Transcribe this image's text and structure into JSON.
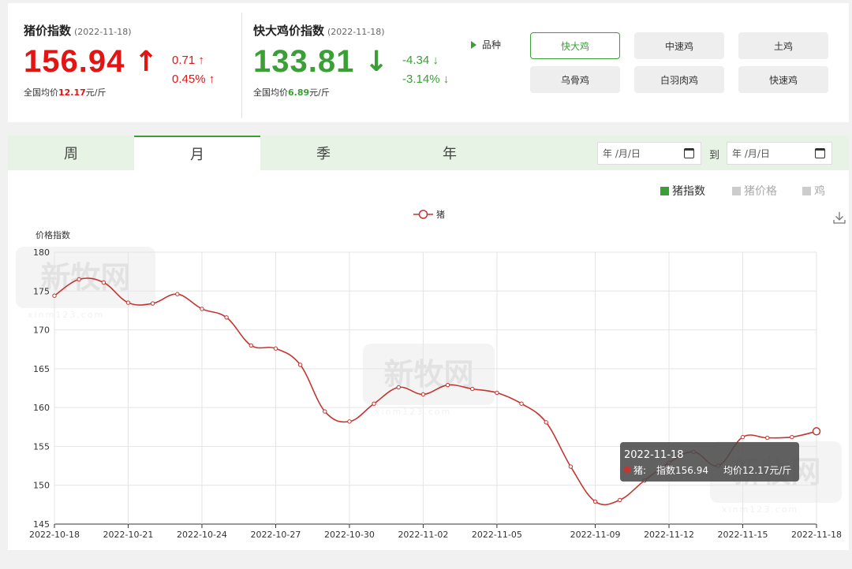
{
  "pig_index": {
    "title": "猪价指数",
    "date": "(2022-11-18)",
    "value": "156.94",
    "arrow": "↑",
    "change_abs": "0.71 ↑",
    "change_pct": "0.45% ↑",
    "avg_prefix": "全国均价",
    "avg_value": "12.17",
    "avg_unit": "元/斤",
    "color": "#e31414"
  },
  "chicken_index": {
    "title": "快大鸡价指数",
    "date": "(2022-11-18)",
    "value": "133.81",
    "arrow": "↓",
    "change_abs": "-4.34 ↓",
    "change_pct": "-3.14% ↓",
    "avg_prefix": "全国均价",
    "avg_value": "6.89",
    "avg_unit": "元/斤",
    "color": "#3aa035"
  },
  "breed": {
    "label": "品种",
    "options": [
      "快大鸡",
      "中速鸡",
      "土鸡",
      "乌骨鸡",
      "白羽肉鸡",
      "快速鸡"
    ],
    "selected": "快大鸡"
  },
  "period_tabs": [
    "周",
    "月",
    "季",
    "年"
  ],
  "active_tab": "月",
  "date_range": {
    "start_placeholder": "年 /月/日",
    "end_placeholder": "年 /月/日",
    "to_label": "到"
  },
  "series_toggles": [
    {
      "label": "猪指数",
      "active": true,
      "color": "#3aa035"
    },
    {
      "label": "猪价格",
      "active": false,
      "color": "#cccccc"
    },
    {
      "label": "鸡",
      "active": false,
      "color": "#cccccc"
    }
  ],
  "watermark": {
    "text": "新牧网",
    "sub": "xinm123.com"
  },
  "chart_data": {
    "type": "line",
    "title": "",
    "xlabel": "",
    "ylabel": "价格指数",
    "ylim": [
      145,
      180
    ],
    "yticks": [
      145,
      150,
      155,
      160,
      165,
      170,
      175,
      180
    ],
    "grid": true,
    "legend_position": "top-center",
    "x": [
      "2022-10-18",
      "2022-10-19",
      "2022-10-20",
      "2022-10-21",
      "2022-10-22",
      "2022-10-23",
      "2022-10-24",
      "2022-10-25",
      "2022-10-26",
      "2022-10-27",
      "2022-10-28",
      "2022-10-29",
      "2022-10-30",
      "2022-10-31",
      "2022-11-01",
      "2022-11-02",
      "2022-11-03",
      "2022-11-04",
      "2022-11-05",
      "2022-11-06",
      "2022-11-07",
      "2022-11-08",
      "2022-11-09",
      "2022-11-10",
      "2022-11-11",
      "2022-11-12",
      "2022-11-13",
      "2022-11-14",
      "2022-11-15",
      "2022-11-16",
      "2022-11-17",
      "2022-11-18"
    ],
    "xtick_labels": [
      "2022-10-18",
      "2022-10-21",
      "2022-10-24",
      "2022-10-27",
      "2022-10-30",
      "2022-11-02",
      "2022-11-05",
      "2022-11-09",
      "2022-11-12",
      "2022-11-15",
      "2022-11-18"
    ],
    "series": [
      {
        "name": "猪",
        "color": "#c23531",
        "values": [
          174.4,
          176.5,
          176.1,
          173.5,
          173.4,
          174.6,
          172.7,
          171.6,
          168.0,
          167.6,
          165.5,
          159.5,
          158.2,
          160.5,
          162.6,
          161.7,
          162.9,
          162.4,
          161.9,
          160.5,
          158.1,
          152.4,
          147.9,
          148.1,
          150.6,
          152.9,
          154.3,
          152.5,
          156.2,
          156.1,
          156.2,
          156.94
        ]
      }
    ],
    "tooltip": {
      "date": "2022-11-18",
      "series": "猪:",
      "index_text": "指数156.94",
      "avg_text": "均价12.17元/斤"
    }
  }
}
